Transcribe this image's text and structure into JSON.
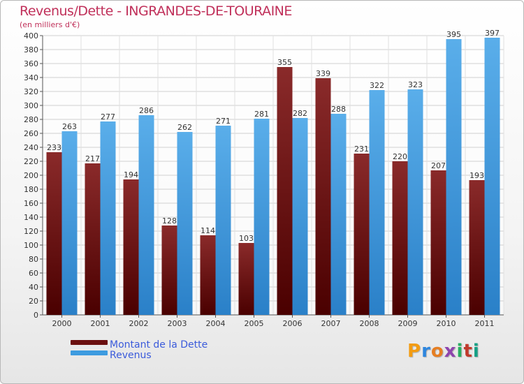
{
  "header": {
    "title": "Revenus/Dette - INGRANDES-DE-TOURAINE",
    "subtitle": "(en milliers d'€)"
  },
  "chart_data": {
    "type": "bar",
    "title": "Revenus/Dette - INGRANDES-DE-TOURAINE",
    "subtitle": "(en milliers d'€)",
    "categories": [
      "2000",
      "2001",
      "2002",
      "2003",
      "2004",
      "2005",
      "2006",
      "2007",
      "2008",
      "2009",
      "2010",
      "2011"
    ],
    "series": [
      {
        "name": "Montant de la Dette",
        "color": "#7a1a1a",
        "values": [
          233,
          217,
          194,
          128,
          114,
          103,
          355,
          339,
          231,
          220,
          207,
          193
        ]
      },
      {
        "name": "Revenus",
        "color": "#3d9be0",
        "values": [
          263,
          277,
          286,
          262,
          271,
          281,
          282,
          288,
          322,
          323,
          395,
          397
        ]
      }
    ],
    "ylim": [
      0,
      400
    ],
    "ytick_step": 20,
    "grid": true,
    "legend_position": "bottom-left"
  },
  "legend": {
    "items": [
      {
        "label": "Montant de la Dette",
        "color": "#6b0f0f"
      },
      {
        "label": "Revenus",
        "color": "#3d9be0"
      }
    ]
  },
  "logo": {
    "letters": [
      {
        "ch": "P",
        "color": "#f39c12"
      },
      {
        "ch": "r",
        "color": "#2e86de"
      },
      {
        "ch": "o",
        "color": "#e67e22"
      },
      {
        "ch": "x",
        "color": "#8e44ad"
      },
      {
        "ch": "i",
        "color": "#27ae60"
      },
      {
        "ch": "t",
        "color": "#c0392b"
      },
      {
        "ch": "i",
        "color": "#16a085"
      }
    ]
  }
}
